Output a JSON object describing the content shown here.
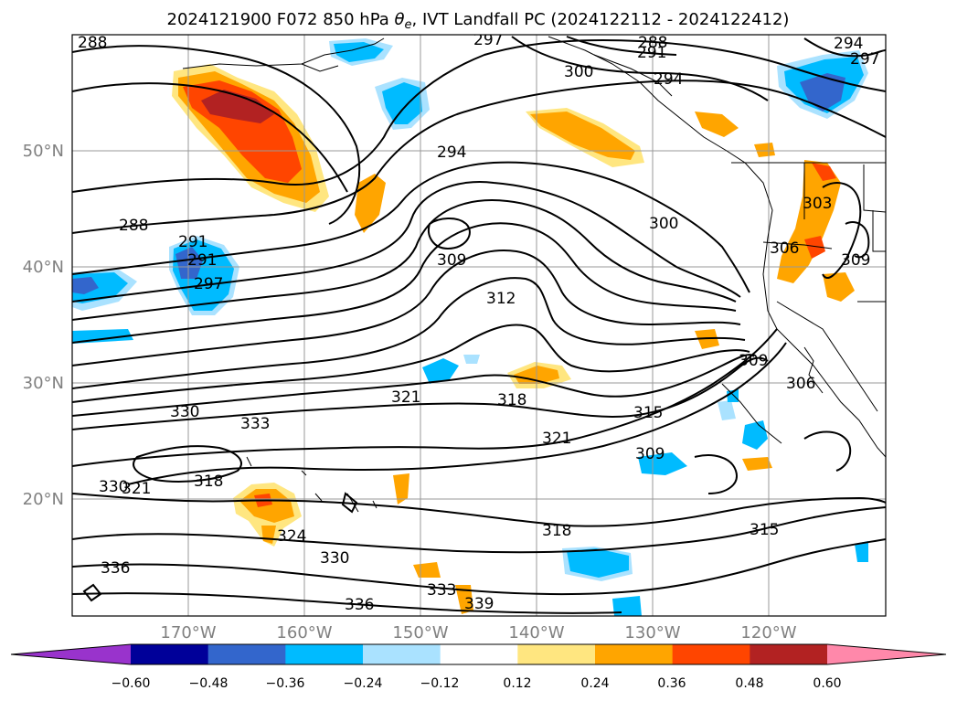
{
  "title_main": "2024121900 F072 850 hPa ",
  "title_symbol": "θ",
  "title_subscript": "e",
  "title_rest": ", IVT Landfall PC (2024122112 - 2024122412)",
  "lat_labels": [
    "50°N",
    "40°N",
    "30°N",
    "20°N"
  ],
  "lon_labels": [
    "170°W",
    "160°W",
    "150°W",
    "140°W",
    "130°W",
    "120°W"
  ],
  "contour_labels": [
    "288",
    "297",
    "288",
    "291",
    "294",
    "297",
    "300",
    "294",
    "294",
    "291",
    "288",
    "291",
    "297",
    "309",
    "312",
    "300",
    "306",
    "303",
    "309",
    "309",
    "306",
    "321",
    "318",
    "315",
    "330",
    "333",
    "321",
    "318",
    "309",
    "321",
    "330",
    "324",
    "330",
    "318",
    "315",
    "336",
    "336",
    "333",
    "339"
  ],
  "colorbar": {
    "ticks": [
      "−0.60",
      "−0.48",
      "−0.36",
      "−0.24",
      "−0.12",
      "0.12",
      "0.24",
      "0.36",
      "0.48",
      "0.60"
    ],
    "colors": [
      "#9933cc",
      "#000099",
      "#3366cc",
      "#00bbff",
      "#aae2ff",
      "#ffffff",
      "#ffe680",
      "#ffa500",
      "#ff4500",
      "#b22222",
      "#ff88aa"
    ]
  }
}
